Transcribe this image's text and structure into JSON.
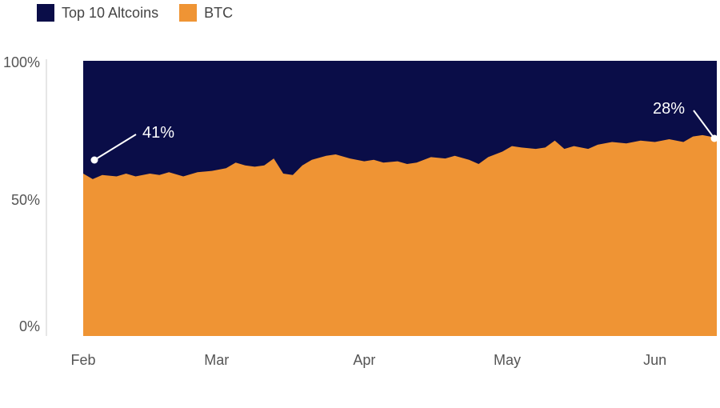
{
  "colors": {
    "altcoins": "#0a0d48",
    "btc": "#ef9434",
    "text": "#555555",
    "axis": "#cccccc",
    "annotation": "#ffffff"
  },
  "chart_data": {
    "type": "area",
    "stacked": true,
    "normalized": true,
    "title": "",
    "xlabel": "",
    "ylabel": "",
    "ylim": [
      0,
      100
    ],
    "y_ticks": [
      "0%",
      "50%",
      "100%"
    ],
    "x_ticks": [
      "Feb",
      "Mar",
      "Apr",
      "May",
      "Jun"
    ],
    "x_range": [
      "Feb 1",
      "Jun 14"
    ],
    "legend_position": "top-left",
    "series": [
      {
        "name": "Top 10 Altcoins",
        "color": "#0a0d48"
      },
      {
        "name": "BTC",
        "color": "#ef9434"
      }
    ],
    "btc_share": [
      {
        "x": "Feb 1",
        "y": 59
      },
      {
        "x": "Feb 3",
        "y": 57
      },
      {
        "x": "Feb 5",
        "y": 58.5
      },
      {
        "x": "Feb 8",
        "y": 58
      },
      {
        "x": "Feb 10",
        "y": 59
      },
      {
        "x": "Feb 12",
        "y": 58
      },
      {
        "x": "Feb 15",
        "y": 59
      },
      {
        "x": "Feb 17",
        "y": 58.5
      },
      {
        "x": "Feb 19",
        "y": 59.5
      },
      {
        "x": "Feb 22",
        "y": 58
      },
      {
        "x": "Feb 25",
        "y": 59.5
      },
      {
        "x": "Feb 28",
        "y": 60
      },
      {
        "x": "Mar 3",
        "y": 61
      },
      {
        "x": "Mar 5",
        "y": 63
      },
      {
        "x": "Mar 7",
        "y": 62
      },
      {
        "x": "Mar 9",
        "y": 61.5
      },
      {
        "x": "Mar 11",
        "y": 62
      },
      {
        "x": "Mar 13",
        "y": 64.5
      },
      {
        "x": "Mar 15",
        "y": 59
      },
      {
        "x": "Mar 17",
        "y": 58.5
      },
      {
        "x": "Mar 19",
        "y": 62
      },
      {
        "x": "Mar 21",
        "y": 64
      },
      {
        "x": "Mar 24",
        "y": 65.5
      },
      {
        "x": "Mar 26",
        "y": 66
      },
      {
        "x": "Mar 29",
        "y": 64.5
      },
      {
        "x": "Apr 1",
        "y": 63.5
      },
      {
        "x": "Apr 3",
        "y": 64
      },
      {
        "x": "Apr 5",
        "y": 63
      },
      {
        "x": "Apr 8",
        "y": 63.5
      },
      {
        "x": "Apr 10",
        "y": 62.5
      },
      {
        "x": "Apr 12",
        "y": 63
      },
      {
        "x": "Apr 15",
        "y": 65
      },
      {
        "x": "Apr 18",
        "y": 64.5
      },
      {
        "x": "Apr 20",
        "y": 65.5
      },
      {
        "x": "Apr 23",
        "y": 64
      },
      {
        "x": "Apr 25",
        "y": 62.5
      },
      {
        "x": "Apr 27",
        "y": 65
      },
      {
        "x": "Apr 30",
        "y": 67
      },
      {
        "x": "May 2",
        "y": 69
      },
      {
        "x": "May 4",
        "y": 68.5
      },
      {
        "x": "May 7",
        "y": 68
      },
      {
        "x": "May 9",
        "y": 68.5
      },
      {
        "x": "May 11",
        "y": 71
      },
      {
        "x": "May 13",
        "y": 68
      },
      {
        "x": "May 15",
        "y": 69
      },
      {
        "x": "May 18",
        "y": 68
      },
      {
        "x": "May 20",
        "y": 69.5
      },
      {
        "x": "May 23",
        "y": 70.5
      },
      {
        "x": "May 26",
        "y": 70
      },
      {
        "x": "May 29",
        "y": 71
      },
      {
        "x": "Jun 1",
        "y": 70.5
      },
      {
        "x": "Jun 4",
        "y": 71.5
      },
      {
        "x": "Jun 7",
        "y": 70.5
      },
      {
        "x": "Jun 9",
        "y": 72.5
      },
      {
        "x": "Jun 11",
        "y": 73
      },
      {
        "x": "Jun 14",
        "y": 72
      }
    ],
    "annotations": [
      {
        "text": "41%",
        "x": "Feb 3",
        "y": 65
      },
      {
        "text": "28%",
        "x": "Jun 14",
        "y": 72
      }
    ]
  }
}
